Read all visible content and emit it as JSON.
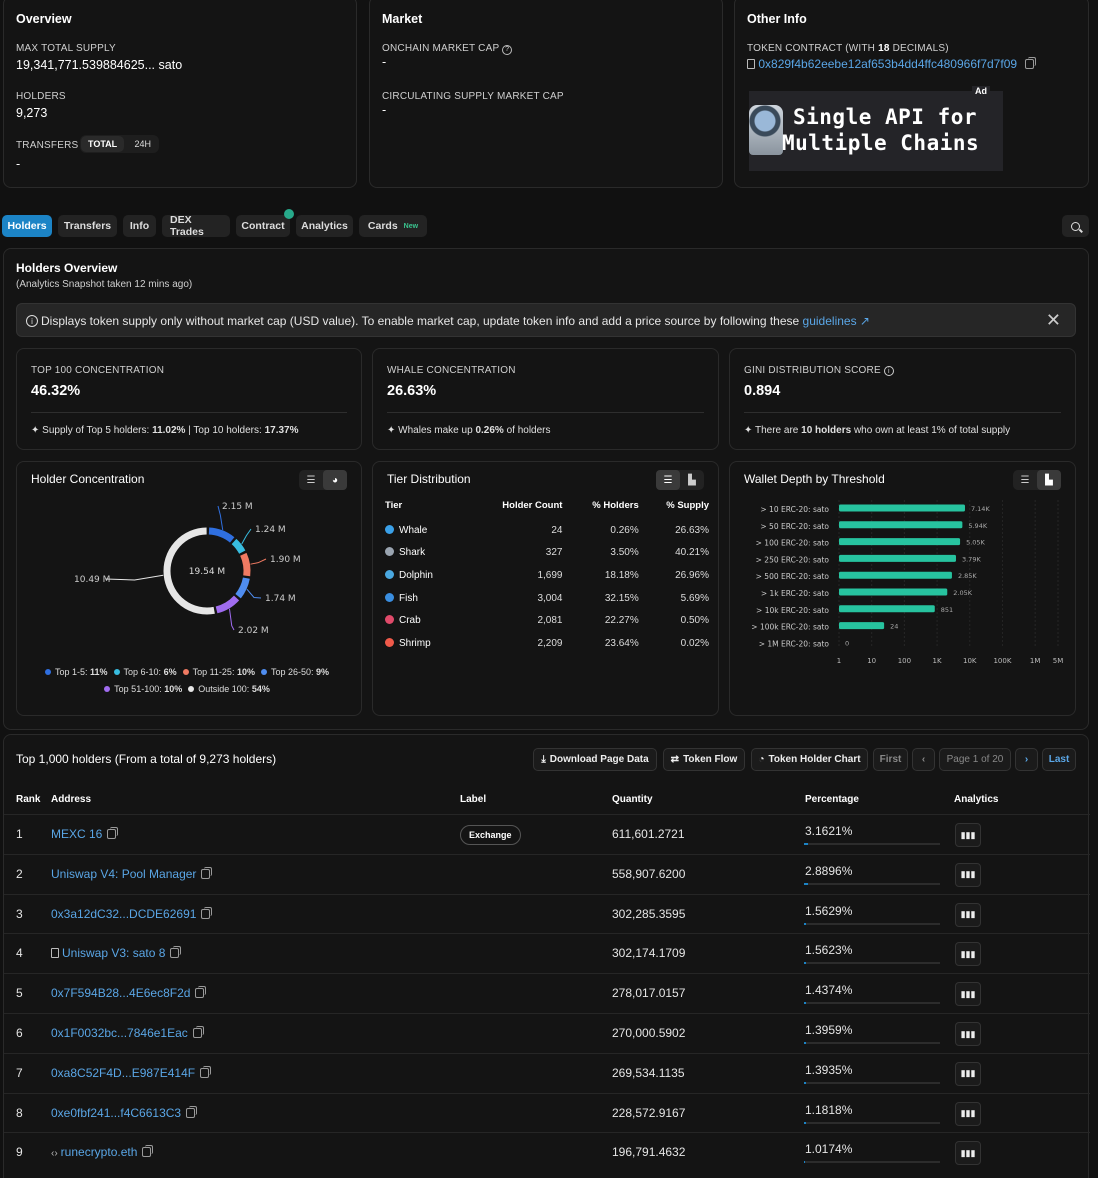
{
  "overview": {
    "title": "Overview",
    "max_supply_label": "MAX TOTAL SUPPLY",
    "max_supply_value": "19,341,771.539884625...",
    "max_supply_unit": "sato",
    "holders_label": "HOLDERS",
    "holders_value": "9,273",
    "transfers_label": "TRANSFERS",
    "transfers_total": "TOTAL",
    "transfers_24h": "24H",
    "transfers_value": "-"
  },
  "market": {
    "title": "Market",
    "onchain_label": "ONCHAIN MARKET CAP",
    "onchain_value": "-",
    "circ_label": "CIRCULATING SUPPLY MARKET CAP",
    "circ_value": "-"
  },
  "other_info": {
    "title": "Other Info",
    "contract_label_pre": "TOKEN CONTRACT (WITH",
    "contract_decimals": "18",
    "contract_label_post": "DECIMALS)",
    "contract_address": "0x829f4b62eebe12af653b4dd4ffc480966f7d7f09",
    "ad_badge": "Ad",
    "ad_line1": "Single API for",
    "ad_line2": "Multiple Chains"
  },
  "tabs": [
    "Holders",
    "Transfers",
    "Info",
    "DEX Trades",
    "Contract",
    "Analytics",
    "Cards"
  ],
  "tab_new_badge": "New",
  "holders_overview": {
    "title": "Holders Overview",
    "subtitle": "(Analytics Snapshot taken 12 mins ago)",
    "notice": "Displays token supply only without market cap (USD value). To enable market cap, update token info and add a price source by following these",
    "notice_link": "guidelines"
  },
  "metrics": {
    "top100": {
      "label": "TOP 100 CONCENTRATION",
      "value": "46.32%",
      "note_pre": "Supply of Top 5 holders:",
      "note_v1": "11.02%",
      "note_mid": "| Top 10 holders:",
      "note_v2": "17.37%"
    },
    "whale": {
      "label": "WHALE CONCENTRATION",
      "value": "26.63%",
      "note_pre": "Whales make up",
      "note_v1": "0.26%",
      "note_post": "of holders"
    },
    "gini": {
      "label": "GINI DISTRIBUTION SCORE",
      "value": "0.894",
      "note_pre": "There are",
      "note_v1": "10 holders",
      "note_post": "who own at least 1% of total supply"
    }
  },
  "holder_concentration": {
    "title": "Holder Concentration",
    "center_label": "19.54 M",
    "slices": [
      {
        "name": "Top 1-5",
        "pct": "11%",
        "value": 2.15,
        "label": "2.15 M",
        "color": "#2f6fe0"
      },
      {
        "name": "Top 6-10",
        "pct": "6%",
        "value": 1.24,
        "label": "1.24 M",
        "color": "#38bde0"
      },
      {
        "name": "Top 11-25",
        "pct": "10%",
        "value": 1.9,
        "label": "1.90 M",
        "color": "#f07a62"
      },
      {
        "name": "Top 26-50",
        "pct": "9%",
        "value": 1.74,
        "label": "1.74 M",
        "color": "#4f8df0"
      },
      {
        "name": "Top 51-100",
        "pct": "10%",
        "value": 2.02,
        "label": "2.02 M",
        "color": "#a06cf0"
      },
      {
        "name": "Outside 100",
        "pct": "54%",
        "value": 10.49,
        "label": "10.49 M",
        "color": "#e6e6e6"
      }
    ]
  },
  "tier_distribution": {
    "title": "Tier Distribution",
    "headers": [
      "Tier",
      "Holder Count",
      "% Holders",
      "% Supply"
    ],
    "rows": [
      {
        "tier": "Whale",
        "count": "24",
        "holders": "0.26%",
        "supply": "26.63%",
        "color": "#3aa0e8"
      },
      {
        "tier": "Shark",
        "count": "327",
        "holders": "3.50%",
        "supply": "40.21%",
        "color": "#9aa4b0"
      },
      {
        "tier": "Dolphin",
        "count": "1,699",
        "holders": "18.18%",
        "supply": "26.96%",
        "color": "#4aa8e0"
      },
      {
        "tier": "Fish",
        "count": "3,004",
        "holders": "32.15%",
        "supply": "5.69%",
        "color": "#3a8ee0"
      },
      {
        "tier": "Crab",
        "count": "2,081",
        "holders": "22.27%",
        "supply": "0.50%",
        "color": "#e04a6a"
      },
      {
        "tier": "Shrimp",
        "count": "2,209",
        "holders": "23.64%",
        "supply": "0.02%",
        "color": "#f05a4a"
      }
    ]
  },
  "wallet_depth": {
    "title": "Wallet Depth by Threshold",
    "chart_data": {
      "type": "bar",
      "orientation": "horizontal",
      "scale": "log",
      "categories": [
        "> 10 ERC-20: sato",
        "> 50 ERC-20: sato",
        "> 100 ERC-20: sato",
        "> 250 ERC-20: sato",
        "> 500 ERC-20: sato",
        "> 1k ERC-20: sato",
        "> 10k ERC-20: sato",
        "> 100k ERC-20: sato",
        "> 1M ERC-20: sato"
      ],
      "values": [
        7140,
        5940,
        5050,
        3790,
        2850,
        2050,
        851,
        24,
        0
      ],
      "value_labels": [
        "7.14K",
        "5.94K",
        "5.05K",
        "3.79K",
        "2.85K",
        "2.05K",
        "851",
        "24",
        "0"
      ],
      "x_ticks": [
        "1",
        "10",
        "100",
        "1K",
        "10K",
        "100K",
        "1M",
        "5M"
      ],
      "color": "#27c39f"
    }
  },
  "holders_table": {
    "title": "Top 1,000 holders (From a total of 9,273 holders)",
    "download": "Download Page Data",
    "token_flow": "Token Flow",
    "holder_chart": "Token Holder Chart",
    "first": "First",
    "page": "Page 1 of 20",
    "last": "Last",
    "headers": {
      "rank": "Rank",
      "address": "Address",
      "label": "Label",
      "quantity": "Quantity",
      "percentage": "Percentage",
      "analytics": "Analytics"
    },
    "rows": [
      {
        "rank": "1",
        "address": "MEXC 16",
        "label": "Exchange",
        "quantity": "611,601.2721",
        "percentage": "3.1621%",
        "pct": 3.1621
      },
      {
        "rank": "2",
        "address": "Uniswap V4: Pool Manager",
        "label": "",
        "quantity": "558,907.6200",
        "percentage": "2.8896%",
        "pct": 2.8896
      },
      {
        "rank": "3",
        "address": "0x3a12dC32...DCDE62691",
        "label": "",
        "quantity": "302,285.3595",
        "percentage": "1.5629%",
        "pct": 1.5629
      },
      {
        "rank": "4",
        "address": "Uniswap V3: sato 8",
        "label": "",
        "quantity": "302,174.1709",
        "percentage": "1.5623%",
        "pct": 1.5623,
        "icon": "contract"
      },
      {
        "rank": "5",
        "address": "0x7F594B28...4E6ec8F2d",
        "label": "",
        "quantity": "278,017.0157",
        "percentage": "1.4374%",
        "pct": 1.4374
      },
      {
        "rank": "6",
        "address": "0x1F0032bc...7846e1Eac",
        "label": "",
        "quantity": "270,000.5902",
        "percentage": "1.3959%",
        "pct": 1.3959
      },
      {
        "rank": "7",
        "address": "0xa8C52F4D...E987E414F",
        "label": "",
        "quantity": "269,534.1135",
        "percentage": "1.3935%",
        "pct": 1.3935
      },
      {
        "rank": "8",
        "address": "0xe0fbf241...f4C6613C3",
        "label": "",
        "quantity": "228,572.9167",
        "percentage": "1.1818%",
        "pct": 1.1818
      },
      {
        "rank": "9",
        "address": "runecrypto.eth",
        "label": "",
        "quantity": "196,791.4632",
        "percentage": "1.0174%",
        "pct": 1.0174,
        "icon": "code"
      }
    ]
  }
}
